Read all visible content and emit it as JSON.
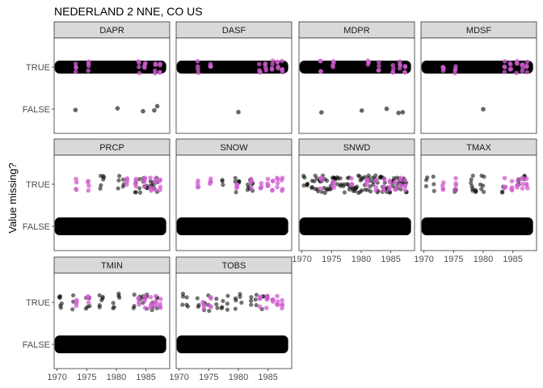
{
  "chart_data": {
    "type": "scatter",
    "title": "NEDERLAND 2 NNE, CO US",
    "ylabel": "Value missing?",
    "xlabel": "",
    "x_ticks": [
      "1970",
      "1975",
      "1980",
      "1985"
    ],
    "xlim": [
      1969.5,
      1989
    ],
    "y_categories": [
      "FALSE",
      "TRUE"
    ],
    "layout": "facet-wrap-4-columns",
    "colors": {
      "point": "#000000",
      "highlight": "#d05ed0",
      "strip_fill": "#d9d9d9",
      "panel_border": "#333333",
      "tick": "#4d4d4d"
    },
    "panels": [
      {
        "name": "DAPR",
        "true_span": [
          1970,
          1988
        ],
        "true_pink": [
          1973.2,
          1975.3,
          1983.8,
          1984.8,
          1986.6,
          1987.4
        ],
        "true_black": [],
        "false_points": [
          1973.1,
          1980.2,
          1984.5,
          1986.4,
          1986.9
        ],
        "false_band": false
      },
      {
        "name": "DASF",
        "true_span": [
          1970,
          1988
        ],
        "true_pink": [
          1973.2,
          1975.3,
          1983.6,
          1984.6,
          1985.7,
          1986.6,
          1987.4
        ],
        "true_black": [],
        "false_points": [
          1980.0
        ],
        "false_band": false
      },
      {
        "name": "MDPR",
        "true_span": [
          1970,
          1988
        ],
        "true_pink": [
          1973.2,
          1975.3,
          1981.2,
          1983.0,
          1985.4,
          1986.6,
          1987.4
        ],
        "true_black": [],
        "false_points": [
          1973.3,
          1980.1,
          1984.3,
          1986.3,
          1987.0
        ],
        "false_band": false
      },
      {
        "name": "MDSF",
        "true_span": [
          1970,
          1988
        ],
        "true_pink": [
          1973.2,
          1975.3,
          1983.6,
          1984.6,
          1985.7,
          1986.6,
          1987.4
        ],
        "true_black": [],
        "false_points": [
          1980.0
        ],
        "false_band": false
      },
      {
        "name": "PRCP",
        "true_span": null,
        "true_pink": [
          1973.2,
          1975.3,
          1981.8,
          1983.3,
          1984.8,
          1985.8,
          1986.6,
          1987.4
        ],
        "true_black": [
          1977.4,
          1977.8,
          1980.4,
          1981.2,
          1983.2,
          1984.0,
          1984.6,
          1985.2,
          1985.8,
          1986.3,
          1986.9
        ],
        "false_points": [],
        "false_band": true
      },
      {
        "name": "SNOW",
        "true_span": null,
        "true_pink": [
          1973.2,
          1975.3,
          1979.8,
          1982.1,
          1983.8,
          1985.0,
          1985.8,
          1986.6,
          1987.4
        ],
        "true_black": [
          1977.4,
          1979.6,
          1980.2,
          1981.6,
          1982.0,
          1982.4
        ],
        "false_points": [],
        "false_band": true
      },
      {
        "name": "SNWD",
        "true_span": null,
        "true_pink": [
          1973.2,
          1975.3,
          1978.4,
          1981.0,
          1982.5,
          1983.8,
          1984.8,
          1985.8,
          1986.6,
          1987.4
        ],
        "true_black": [
          1970.4,
          1971.0,
          1971.6,
          1972.2,
          1972.6,
          1973.0,
          1973.4,
          1973.8,
          1974.2,
          1974.8,
          1975.2,
          1975.6,
          1976.0,
          1976.6,
          1977.1,
          1977.7,
          1978.1,
          1978.6,
          1979.0,
          1979.4,
          1979.8,
          1980.2,
          1980.6,
          1981.2,
          1981.6,
          1982.0,
          1982.4,
          1982.8,
          1983.2,
          1983.6,
          1984.0,
          1984.4,
          1984.8,
          1985.2,
          1985.6,
          1986.0,
          1986.4,
          1986.8,
          1987.2,
          1987.6
        ],
        "false_points": [],
        "false_band": true
      },
      {
        "name": "TMAX",
        "true_span": null,
        "true_pink": [
          1973.2,
          1975.3,
          1983.7,
          1984.8,
          1985.8,
          1986.6,
          1987.4
        ],
        "true_black": [
          1970.5,
          1971.6,
          1975.3,
          1978.0,
          1978.3,
          1978.7,
          1979.6,
          1980.1,
          1983.3,
          1986.1,
          1986.9
        ],
        "false_points": [],
        "false_band": true
      },
      {
        "name": "TMIN",
        "true_span": null,
        "true_pink": [
          1973.2,
          1975.3,
          1983.8,
          1984.8,
          1985.8,
          1986.6,
          1987.4
        ],
        "true_black": [
          1970.4,
          1970.7,
          1972.6,
          1975.0,
          1975.4,
          1977.1,
          1977.6,
          1979.5,
          1980.4,
          1983.0,
          1984.0,
          1984.6,
          1985.2,
          1986.1,
          1986.8
        ],
        "false_points": [],
        "false_band": true
      },
      {
        "name": "TOBS",
        "true_span": null,
        "true_pink": [
          1974.1,
          1975.3,
          1983.7,
          1984.8,
          1985.8,
          1986.6,
          1987.4
        ],
        "true_black": [
          1970.6,
          1971.4,
          1973.2,
          1974.2,
          1975.0,
          1976.4,
          1977.3,
          1978.2,
          1979.6,
          1980.4,
          1982.2,
          1983.0,
          1984.1,
          1985.0
        ],
        "false_points": [],
        "false_band": true
      }
    ]
  }
}
